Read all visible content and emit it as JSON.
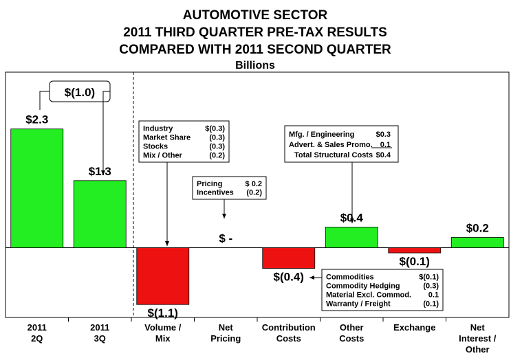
{
  "chart_data": {
    "type": "bar",
    "title": [
      "AUTOMOTIVE SECTOR",
      "2011 THIRD QUARTER PRE-TAX RESULTS",
      "COMPARED WITH 2011 SECOND QUARTER"
    ],
    "subtitle": "Billions",
    "categories": [
      "2011\n2Q",
      "2011\n3Q",
      "Volume /\nMix",
      "Net\nPricing",
      "Contribution\nCosts",
      "Other\nCosts",
      "Exchange",
      "Net\nInterest /\nOther"
    ],
    "values": [
      2.3,
      1.3,
      -1.1,
      0,
      -0.4,
      0.4,
      -0.1,
      0.2
    ],
    "value_labels": [
      "$2.3",
      "$1.3",
      "$(1.1)",
      "$ -",
      "$(0.4)",
      "$0.4",
      "$(0.1)",
      "$0.2"
    ],
    "positive_color": "#22ee22",
    "negative_color": "#ee1111",
    "ylim": [
      -1.35,
      3.4
    ],
    "annotations": {
      "change": "$(1.0)",
      "volume": [
        [
          "Industry",
          "$(0.3)"
        ],
        [
          "Market Share",
          "(0.3)"
        ],
        [
          "Stocks",
          "(0.3)"
        ],
        [
          "Mix / Other",
          "(0.2)"
        ]
      ],
      "pricing": [
        [
          "Pricing",
          "$ 0.2"
        ],
        [
          "Incentives",
          "(0.2)"
        ]
      ],
      "structural": [
        [
          "Mfg. / Engineering",
          "$0.3"
        ],
        [
          "Advert. & Sales Promo.",
          "0.1"
        ],
        [
          "Total Structural Costs",
          "$0.4"
        ]
      ],
      "contribution": [
        [
          "Commodities",
          "$(0.1)"
        ],
        [
          "Commodity Hedging",
          "(0.3)"
        ],
        [
          "Material Excl. Commod.",
          "0.1"
        ],
        [
          "Warranty / Freight",
          "(0.1)"
        ]
      ]
    }
  }
}
